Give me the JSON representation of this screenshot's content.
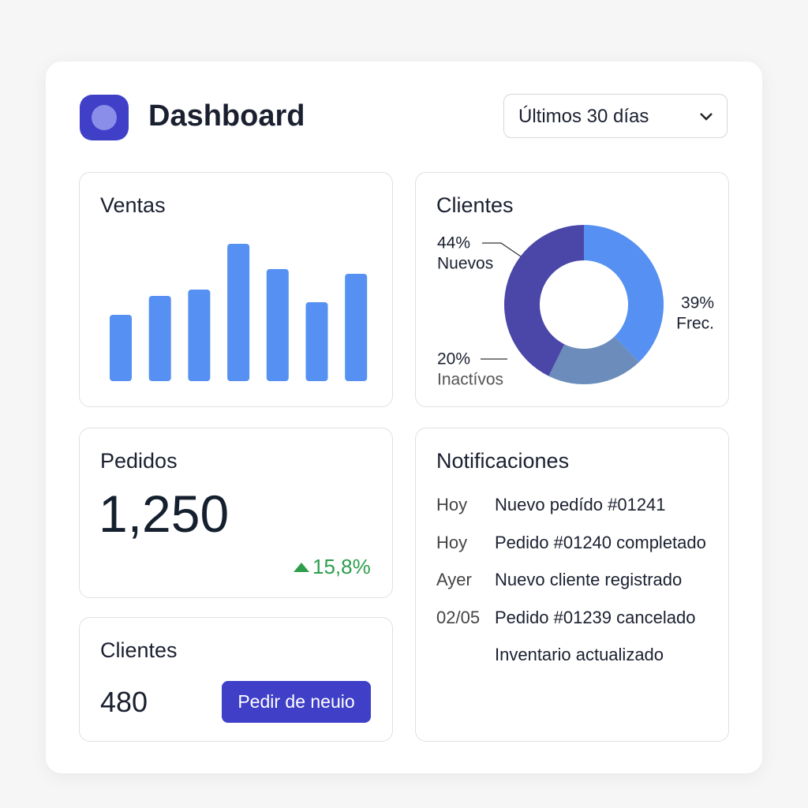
{
  "header": {
    "title": "Dashboard",
    "period": "Últimos 30 días"
  },
  "chart_data": [
    {
      "type": "bar",
      "title": "Ventas",
      "values": [
        84,
        108,
        116,
        174,
        142,
        100,
        136
      ],
      "color": "#5590f2"
    },
    {
      "type": "pie",
      "title": "Clientes",
      "categories": [
        "Frec.",
        "Inactívos",
        "Nuevos"
      ],
      "values": [
        39,
        20,
        44
      ],
      "value_labels": [
        "39%",
        "20%",
        "44%"
      ],
      "colors": [
        "#5590f2",
        "#6c8dbb",
        "#4a47a8"
      ]
    }
  ],
  "pedidos": {
    "title": "Pedidos",
    "value": "1,250",
    "change": "15,8%"
  },
  "clientes": {
    "title": "Clientes",
    "value": "480",
    "button": "Pedir de neuio"
  },
  "notificaciones": {
    "title": "Notificaciones",
    "items": [
      {
        "date": "Hoy",
        "text": "Nuevo pedído #01241"
      },
      {
        "date": "Hoy",
        "text": "Pedido #01240 completado"
      },
      {
        "date": "Ayer",
        "text": "Nuevo cliente registrado"
      },
      {
        "date": "02/05",
        "text": "Pedido #01239 cancelado"
      },
      {
        "text": "Inventario actualizado"
      }
    ]
  }
}
